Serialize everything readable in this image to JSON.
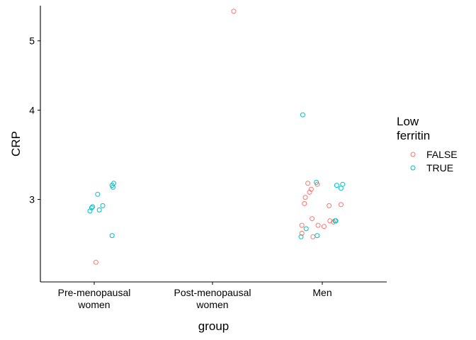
{
  "chart_data": {
    "type": "scatter",
    "title": "",
    "xlabel": "group",
    "ylabel": "CRP",
    "y_scale": "log",
    "ylim": [
      2.3,
      5.6
    ],
    "y_ticks": [
      3,
      4,
      5
    ],
    "categories": [
      {
        "key": "pre",
        "lines": [
          "Pre-menopausal",
          "women"
        ]
      },
      {
        "key": "post",
        "lines": [
          "Post-menopausal",
          "women"
        ]
      },
      {
        "key": "men",
        "lines": [
          "Men"
        ]
      }
    ],
    "grid": false,
    "legend": {
      "title_lines": [
        "Low",
        "ferritin"
      ],
      "placement": "right",
      "entries": [
        {
          "label": "FALSE",
          "color": "#F8766D"
        },
        {
          "label": "TRUE",
          "color": "#00BFC4"
        }
      ]
    },
    "series": [
      {
        "name": "FALSE",
        "color": "#F8766D",
        "points": [
          {
            "group": "pre",
            "jitter": 0.02,
            "y": 2.45
          },
          {
            "group": "post",
            "jitter": 0.25,
            "y": 5.5
          },
          {
            "group": "men",
            "jitter": -0.17,
            "y": 3.16
          },
          {
            "group": "men",
            "jitter": -0.15,
            "y": 3.07
          },
          {
            "group": "men",
            "jitter": -0.13,
            "y": 3.1
          },
          {
            "group": "men",
            "jitter": -0.2,
            "y": 3.02
          },
          {
            "group": "men",
            "jitter": -0.21,
            "y": 2.96
          },
          {
            "group": "men",
            "jitter": -0.06,
            "y": 3.15
          },
          {
            "group": "men",
            "jitter": -0.12,
            "y": 2.82
          },
          {
            "group": "men",
            "jitter": -0.24,
            "y": 2.76
          },
          {
            "group": "men",
            "jitter": -0.05,
            "y": 2.76
          },
          {
            "group": "men",
            "jitter": 0.02,
            "y": 2.75
          },
          {
            "group": "men",
            "jitter": -0.24,
            "y": 2.69
          },
          {
            "group": "men",
            "jitter": -0.11,
            "y": 2.66
          },
          {
            "group": "men",
            "jitter": 0.08,
            "y": 2.94
          },
          {
            "group": "men",
            "jitter": 0.09,
            "y": 2.8
          },
          {
            "group": "men",
            "jitter": 0.13,
            "y": 2.79
          },
          {
            "group": "men",
            "jitter": 0.22,
            "y": 2.95
          }
        ]
      },
      {
        "name": "TRUE",
        "color": "#00BFC4",
        "points": [
          {
            "group": "pre",
            "jitter": 0.04,
            "y": 3.05
          },
          {
            "group": "pre",
            "jitter": -0.03,
            "y": 2.92
          },
          {
            "group": "pre",
            "jitter": -0.02,
            "y": 2.93
          },
          {
            "group": "pre",
            "jitter": -0.05,
            "y": 2.89
          },
          {
            "group": "pre",
            "jitter": 0.06,
            "y": 2.9
          },
          {
            "group": "pre",
            "jitter": 0.1,
            "y": 2.94
          },
          {
            "group": "pre",
            "jitter": 0.21,
            "y": 3.14
          },
          {
            "group": "pre",
            "jitter": 0.22,
            "y": 3.12
          },
          {
            "group": "pre",
            "jitter": 0.23,
            "y": 3.16
          },
          {
            "group": "pre",
            "jitter": 0.21,
            "y": 2.67
          },
          {
            "group": "men",
            "jitter": -0.23,
            "y": 3.94
          },
          {
            "group": "men",
            "jitter": -0.07,
            "y": 3.17
          },
          {
            "group": "men",
            "jitter": 0.17,
            "y": 3.14
          },
          {
            "group": "men",
            "jitter": 0.22,
            "y": 3.11
          },
          {
            "group": "men",
            "jitter": 0.24,
            "y": 3.15
          },
          {
            "group": "men",
            "jitter": -0.19,
            "y": 2.73
          },
          {
            "group": "men",
            "jitter": -0.25,
            "y": 2.66
          },
          {
            "group": "men",
            "jitter": -0.06,
            "y": 2.67
          },
          {
            "group": "men",
            "jitter": 0.15,
            "y": 2.8
          },
          {
            "group": "men",
            "jitter": 0.16,
            "y": 2.8
          }
        ]
      }
    ]
  }
}
